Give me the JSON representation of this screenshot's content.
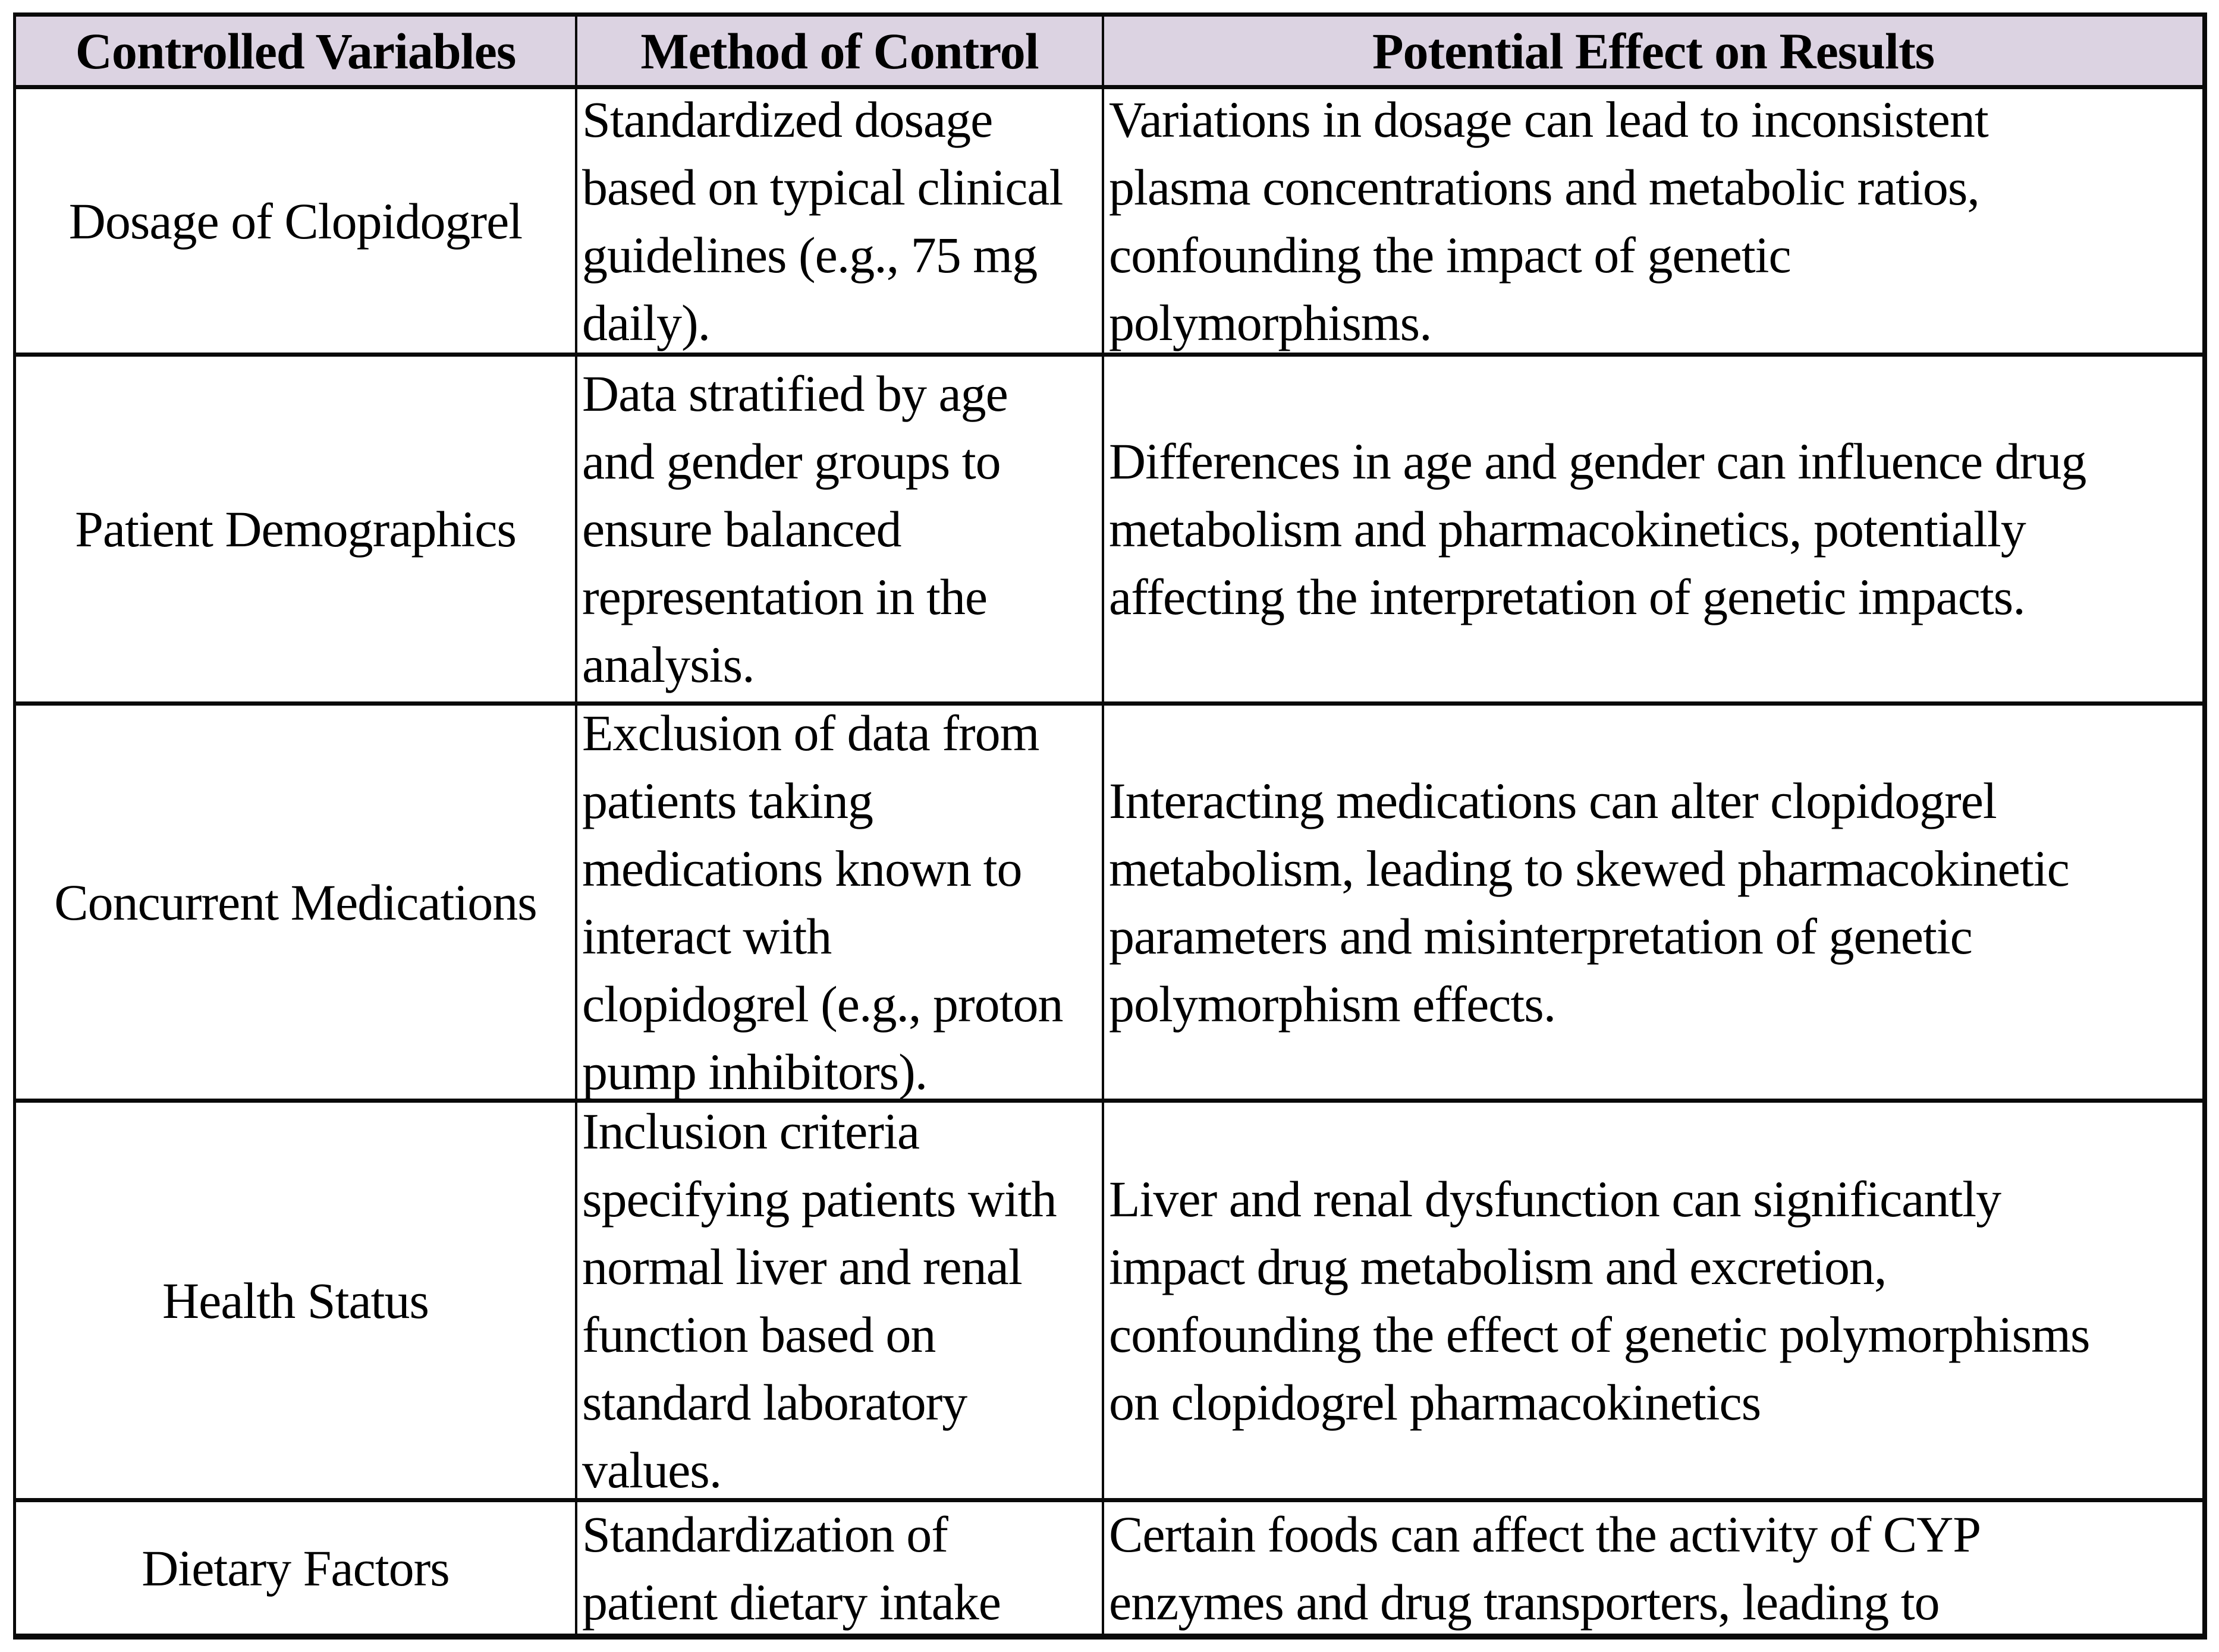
{
  "colors": {
    "header_bg": "#DCD3E2",
    "border": "#0a0a0a",
    "text": "#000000",
    "page_bg": "#ffffff"
  },
  "table": {
    "headers": [
      "Controlled Variables",
      "Method of Control",
      "Potential Effect on Results"
    ],
    "rows": [
      {
        "variable": "Dosage of Clopidogrel",
        "method": "Standardized dosage\nbased on typical clinical\nguidelines (e.g., 75 mg\ndaily).",
        "effect": "Variations in dosage can lead to inconsistent\nplasma concentrations and metabolic ratios,\nconfounding the impact of genetic\npolymorphisms."
      },
      {
        "variable": "Patient Demographics",
        "method": "Data stratified by age\nand gender groups to\nensure balanced\nrepresentation in the\nanalysis.",
        "effect": "Differences in age and gender can influence drug\nmetabolism and pharmacokinetics, potentially\naffecting the interpretation of genetic impacts."
      },
      {
        "variable": "Concurrent Medications",
        "method": "Exclusion of data from\npatients taking\nmedications known to\ninteract with\nclopidogrel (e.g., proton\npump inhibitors).",
        "effect": "Interacting medications can alter clopidogrel\nmetabolism, leading to skewed pharmacokinetic\nparameters and misinterpretation of genetic\npolymorphism effects."
      },
      {
        "variable": "Health Status",
        "method": "Inclusion criteria\nspecifying patients with\nnormal liver and renal\nfunction based on\nstandard laboratory\nvalues.",
        "effect": "Liver and renal dysfunction can significantly\nimpact drug metabolism and excretion,\nconfounding the effect of genetic polymorphisms\non clopidogrel pharmacokinetics"
      },
      {
        "variable": "Dietary Factors",
        "method": "Standardization of\npatient dietary intake",
        "effect": "Certain foods can affect the activity of CYP\nenzymes and drug transporters, leading to"
      }
    ]
  }
}
